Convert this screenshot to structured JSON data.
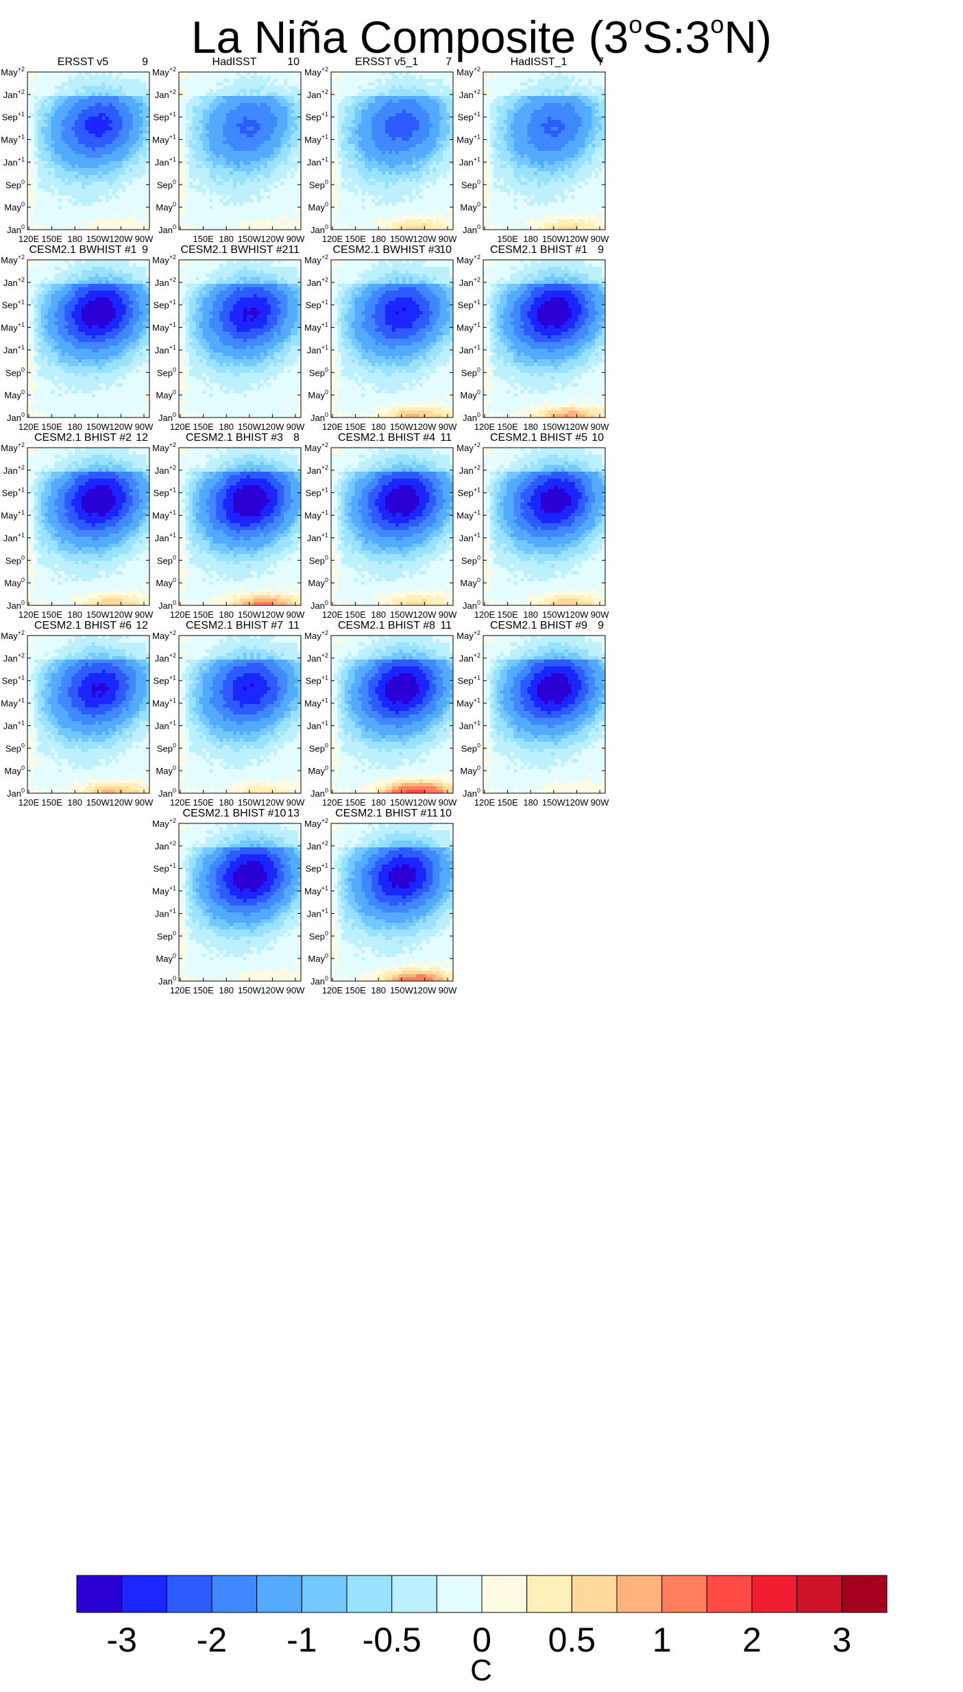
{
  "title": {
    "main": "La Niña Composite (3",
    "sup1": "o",
    "mid": "S:3",
    "sup2": "o",
    "end": "N)"
  },
  "chart_data": {
    "type": "heatmap",
    "description_axes": "Hovmoller: longitude (x) vs time (y)",
    "x_tick_labels": [
      "120E",
      "150E",
      "180",
      "150W",
      "120W",
      "90W"
    ],
    "y_tick_labels": [
      {
        "base": "Jan",
        "sup": "0"
      },
      {
        "base": "May",
        "sup": "0"
      },
      {
        "base": "Sep",
        "sup": "0"
      },
      {
        "base": "Jan",
        "sup": "+1"
      },
      {
        "base": "May",
        "sup": "+1"
      },
      {
        "base": "Sep",
        "sup": "+1"
      },
      {
        "base": "Jan",
        "sup": "+2"
      },
      {
        "base": "May",
        "sup": "+2"
      }
    ],
    "panels": [
      {
        "name": "ERSST v5",
        "count": "9",
        "minimum": -2.2,
        "warm_east_onset": 0.3,
        "hide_120E": false
      },
      {
        "name": "HadISST",
        "count": "10",
        "minimum": -1.6,
        "warm_east_onset": 0.2,
        "hide_120E": true
      },
      {
        "name": "ERSST v5_1",
        "count": "7",
        "minimum": -1.8,
        "warm_east_onset": 0.7,
        "hide_120E": false
      },
      {
        "name": "HadISST_1",
        "count": "7",
        "minimum": -1.6,
        "warm_east_onset": 0.7,
        "hide_120E": true
      },
      {
        "name": "CESM2.1 BWHIST #1",
        "count": "9",
        "minimum": -3.0,
        "warm_east_onset": 0.0,
        "hide_120E": false
      },
      {
        "name": "CESM2.1 BWHIST #2",
        "count": "11",
        "minimum": -2.6,
        "warm_east_onset": 0.0,
        "hide_120E": false
      },
      {
        "name": "CESM2.1 BWHIST #3",
        "count": "10",
        "minimum": -2.5,
        "warm_east_onset": 0.9,
        "hide_120E": false
      },
      {
        "name": "CESM2.1 BHIST #1",
        "count": "9",
        "minimum": -3.0,
        "warm_east_onset": 1.1,
        "hide_120E": false
      },
      {
        "name": "CESM2.1 BHIST #2",
        "count": "12",
        "minimum": -3.0,
        "warm_east_onset": 0.8,
        "hide_120E": false
      },
      {
        "name": "CESM2.1 BHIST #3",
        "count": "8",
        "minimum": -3.1,
        "warm_east_onset": 1.2,
        "hide_120E": false
      },
      {
        "name": "CESM2.1 BHIST #4",
        "count": "11",
        "minimum": -3.0,
        "warm_east_onset": 0.7,
        "hide_120E": false
      },
      {
        "name": "CESM2.1 BHIST #5",
        "count": "10",
        "minimum": -2.9,
        "warm_east_onset": 0.8,
        "hide_120E": false
      },
      {
        "name": "CESM2.1 BHIST #6",
        "count": "12",
        "minimum": -2.6,
        "warm_east_onset": 0.9,
        "hide_120E": false
      },
      {
        "name": "CESM2.1 BHIST #7",
        "count": "11",
        "minimum": -2.5,
        "warm_east_onset": 0.5,
        "hide_120E": false
      },
      {
        "name": "CESM2.1 BHIST #8",
        "count": "11",
        "minimum": -3.0,
        "warm_east_onset": 1.8,
        "hide_120E": false
      },
      {
        "name": "CESM2.1 BHIST #9",
        "count": "9",
        "minimum": -3.0,
        "warm_east_onset": 0.3,
        "hide_120E": false
      },
      {
        "name": "CESM2.1 BHIST #10",
        "count": "13",
        "minimum": -3.0,
        "warm_east_onset": 0.3,
        "hide_120E": false
      },
      {
        "name": "CESM2.1 BHIST #11",
        "count": "10",
        "minimum": -2.8,
        "warm_east_onset": 1.4,
        "hide_120E": false
      }
    ],
    "colorbar": {
      "levels": [
        -3.5,
        -3,
        -2.5,
        -2,
        -1.5,
        -1,
        -0.75,
        -0.5,
        -0.25,
        0,
        0.25,
        0.5,
        0.75,
        1,
        1.5,
        2,
        2.5,
        3,
        3.5
      ],
      "colors": [
        "#2a00d5",
        "#1b26ff",
        "#2c5bff",
        "#3f88ff",
        "#54aaff",
        "#73c8ff",
        "#98e1ff",
        "#bdf0ff",
        "#e2fcff",
        "#fffbe3",
        "#ffefb8",
        "#ffd89a",
        "#ffb27b",
        "#ff7e5c",
        "#ff4a45",
        "#f11e32",
        "#d01228",
        "#a5001c"
      ],
      "labels": [
        "-3",
        "-2",
        "-1",
        "-0.5",
        "0",
        "0.5",
        "1",
        "2",
        "3"
      ],
      "units": "C"
    }
  }
}
